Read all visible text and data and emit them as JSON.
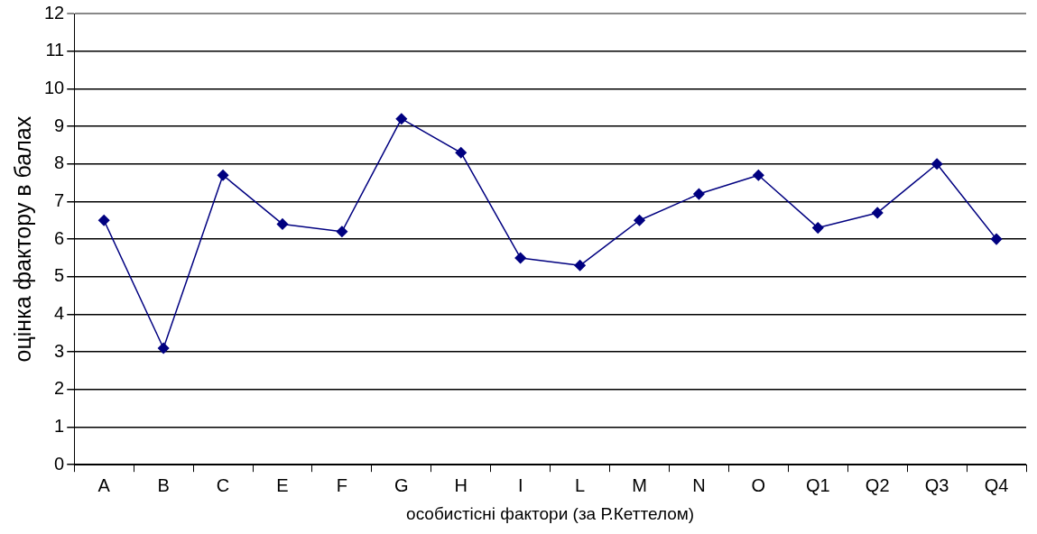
{
  "chart_data": {
    "type": "line",
    "xlabel": "особистісні фактори (за Р.Кеттелом)",
    "ylabel": "оцінка фактору в балах",
    "categories": [
      "A",
      "B",
      "C",
      "E",
      "F",
      "G",
      "H",
      "I",
      "L",
      "M",
      "N",
      "O",
      "Q1",
      "Q2",
      "Q3",
      "Q4"
    ],
    "series": [
      {
        "color": "#000080",
        "values": [
          6.5,
          3.1,
          7.7,
          6.4,
          6.2,
          9.2,
          8.3,
          5.5,
          5.3,
          6.5,
          7.2,
          7.7,
          6.3,
          6.7,
          8.0,
          6.0
        ]
      }
    ],
    "ylim": [
      0,
      12
    ],
    "yticks": [
      0,
      1,
      2,
      3,
      4,
      5,
      6,
      7,
      8,
      9,
      10,
      11,
      12
    ],
    "grid": "y",
    "legend": false,
    "marker": "diamond",
    "line_style": "solid"
  }
}
